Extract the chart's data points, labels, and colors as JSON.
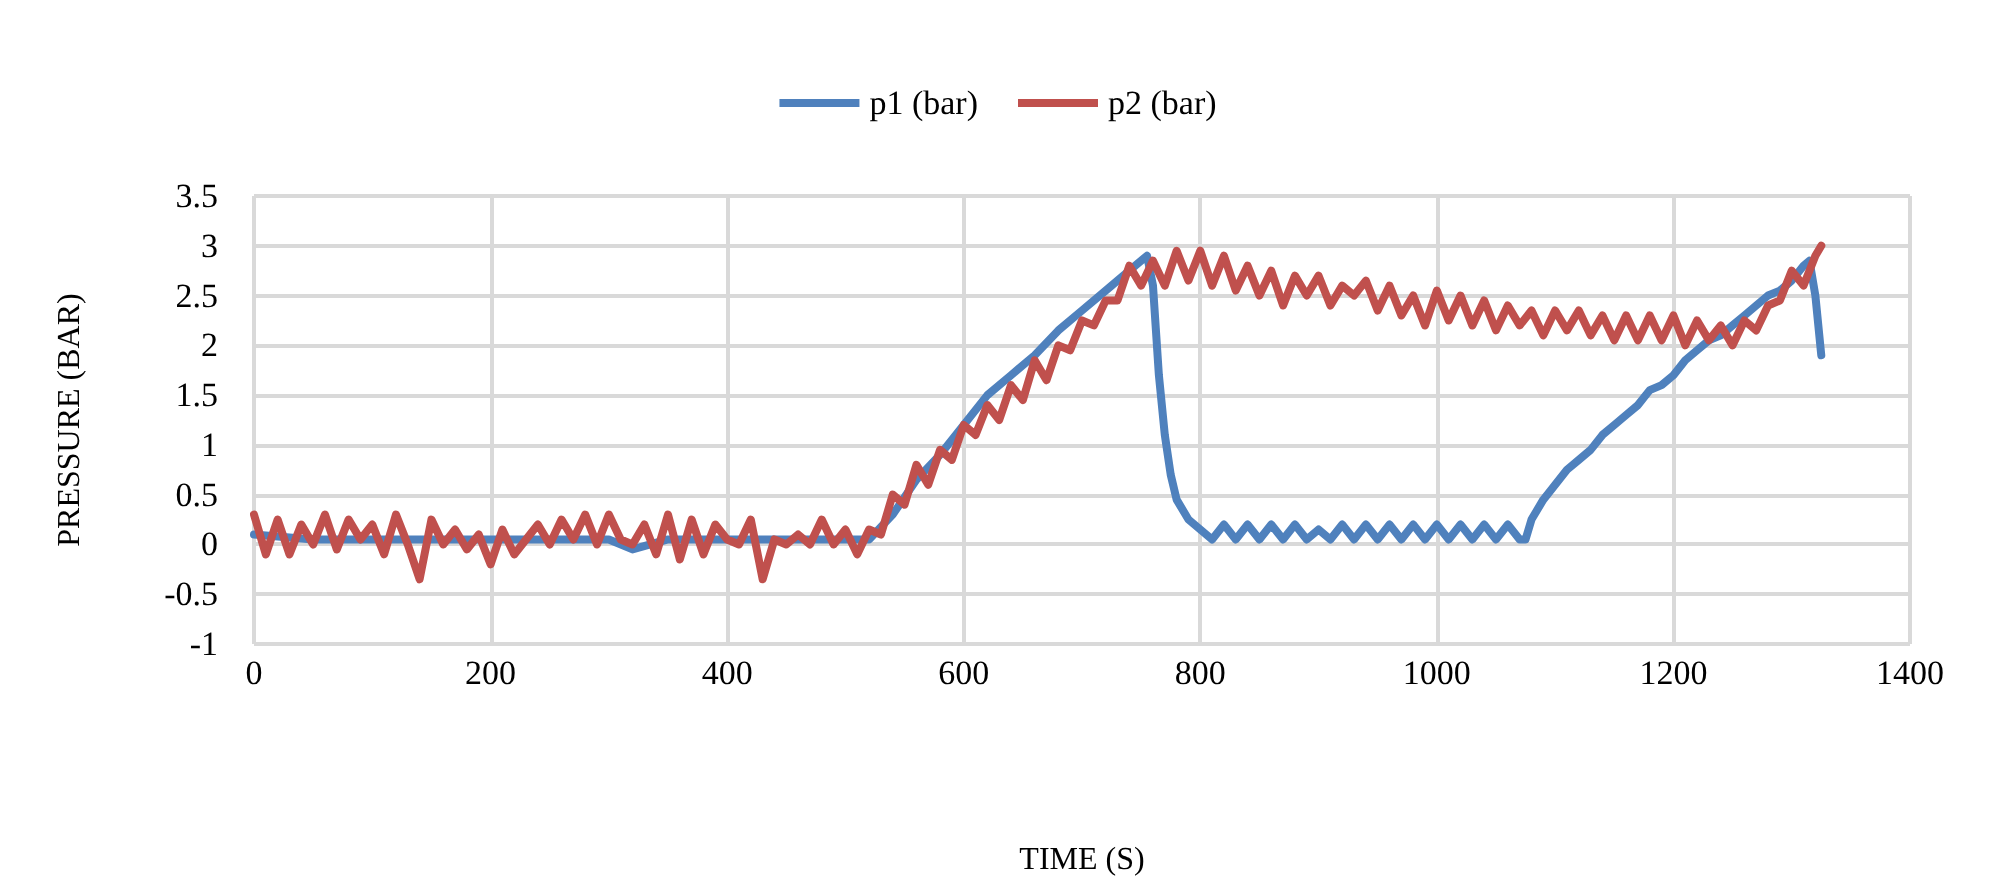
{
  "chart_data": {
    "type": "line",
    "xlabel": "TIME (S)",
    "ylabel": "PRESSURE (BAR)",
    "xlim": [
      0,
      1400
    ],
    "xticks": [
      0,
      200,
      400,
      600,
      800,
      1000,
      1200,
      1400
    ],
    "ylim": [
      -1,
      3.5
    ],
    "yticks": [
      -1,
      -0.5,
      0,
      0.5,
      1,
      1.5,
      2,
      2.5,
      3,
      3.5
    ],
    "grid": true,
    "legend": "top",
    "marker": "none",
    "line_style": "solid",
    "series": [
      {
        "name": "p1 (bar)",
        "color": "#4f81bd",
        "x": [
          0,
          50,
          100,
          150,
          200,
          250,
          300,
          320,
          350,
          400,
          450,
          500,
          520,
          540,
          560,
          580,
          600,
          620,
          640,
          660,
          680,
          700,
          720,
          740,
          755,
          760,
          765,
          770,
          775,
          780,
          790,
          800,
          810,
          820,
          830,
          840,
          850,
          860,
          870,
          880,
          890,
          900,
          910,
          920,
          930,
          940,
          950,
          960,
          970,
          980,
          990,
          1000,
          1010,
          1020,
          1030,
          1040,
          1050,
          1060,
          1070,
          1075,
          1080,
          1090,
          1100,
          1110,
          1120,
          1130,
          1140,
          1150,
          1160,
          1170,
          1180,
          1190,
          1200,
          1210,
          1220,
          1230,
          1240,
          1250,
          1260,
          1270,
          1280,
          1290,
          1300,
          1310,
          1315,
          1320,
          1325
        ],
        "values": [
          0.1,
          0.05,
          0.05,
          0.05,
          0.05,
          0.05,
          0.05,
          -0.05,
          0.05,
          0.05,
          0.05,
          0.05,
          0.05,
          0.3,
          0.65,
          0.9,
          1.2,
          1.5,
          1.7,
          1.9,
          2.15,
          2.35,
          2.55,
          2.75,
          2.9,
          2.6,
          1.7,
          1.1,
          0.7,
          0.45,
          0.25,
          0.15,
          0.05,
          0.2,
          0.05,
          0.2,
          0.05,
          0.2,
          0.05,
          0.2,
          0.05,
          0.15,
          0.05,
          0.2,
          0.05,
          0.2,
          0.05,
          0.2,
          0.05,
          0.2,
          0.05,
          0.2,
          0.05,
          0.2,
          0.05,
          0.2,
          0.05,
          0.2,
          0.05,
          0.05,
          0.25,
          0.45,
          0.6,
          0.75,
          0.85,
          0.95,
          1.1,
          1.2,
          1.3,
          1.4,
          1.55,
          1.6,
          1.7,
          1.85,
          1.95,
          2.05,
          2.1,
          2.2,
          2.3,
          2.4,
          2.5,
          2.55,
          2.65,
          2.8,
          2.85,
          2.5,
          1.9
        ]
      },
      {
        "name": "p2 (bar)",
        "color": "#c0504d",
        "x": [
          0,
          10,
          20,
          30,
          40,
          50,
          60,
          70,
          80,
          90,
          100,
          110,
          120,
          130,
          140,
          150,
          160,
          170,
          180,
          190,
          200,
          210,
          220,
          230,
          240,
          250,
          260,
          270,
          280,
          290,
          300,
          310,
          320,
          330,
          340,
          350,
          360,
          370,
          380,
          390,
          400,
          410,
          420,
          430,
          440,
          450,
          460,
          470,
          480,
          490,
          500,
          510,
          520,
          530,
          540,
          550,
          560,
          570,
          580,
          590,
          600,
          610,
          620,
          630,
          640,
          650,
          660,
          670,
          680,
          690,
          700,
          710,
          720,
          730,
          740,
          750,
          760,
          770,
          780,
          790,
          800,
          810,
          820,
          830,
          840,
          850,
          860,
          870,
          880,
          890,
          900,
          910,
          920,
          930,
          940,
          950,
          960,
          970,
          980,
          990,
          1000,
          1010,
          1020,
          1030,
          1040,
          1050,
          1060,
          1070,
          1080,
          1090,
          1100,
          1110,
          1120,
          1130,
          1140,
          1150,
          1160,
          1170,
          1180,
          1190,
          1200,
          1210,
          1220,
          1230,
          1240,
          1250,
          1260,
          1270,
          1280,
          1290,
          1300,
          1310,
          1320,
          1325
        ],
        "values": [
          0.3,
          -0.1,
          0.25,
          -0.1,
          0.2,
          0.0,
          0.3,
          -0.05,
          0.25,
          0.05,
          0.2,
          -0.1,
          0.3,
          0.0,
          -0.35,
          0.25,
          0.0,
          0.15,
          -0.05,
          0.1,
          -0.2,
          0.15,
          -0.1,
          0.05,
          0.2,
          0.0,
          0.25,
          0.05,
          0.3,
          0.0,
          0.3,
          0.05,
          0.0,
          0.2,
          -0.1,
          0.3,
          -0.15,
          0.25,
          -0.1,
          0.2,
          0.05,
          0.0,
          0.25,
          -0.35,
          0.05,
          0.0,
          0.1,
          0.0,
          0.25,
          0.0,
          0.15,
          -0.1,
          0.15,
          0.1,
          0.5,
          0.4,
          0.8,
          0.6,
          0.95,
          0.85,
          1.2,
          1.1,
          1.4,
          1.25,
          1.6,
          1.45,
          1.85,
          1.65,
          2.0,
          1.95,
          2.25,
          2.2,
          2.45,
          2.45,
          2.8,
          2.6,
          2.85,
          2.6,
          2.95,
          2.65,
          2.95,
          2.6,
          2.9,
          2.55,
          2.8,
          2.5,
          2.75,
          2.4,
          2.7,
          2.5,
          2.7,
          2.4,
          2.6,
          2.5,
          2.65,
          2.35,
          2.6,
          2.3,
          2.5,
          2.2,
          2.55,
          2.25,
          2.5,
          2.2,
          2.45,
          2.15,
          2.4,
          2.2,
          2.35,
          2.1,
          2.35,
          2.15,
          2.35,
          2.1,
          2.3,
          2.05,
          2.3,
          2.05,
          2.3,
          2.05,
          2.3,
          2.0,
          2.25,
          2.05,
          2.2,
          2.0,
          2.25,
          2.15,
          2.4,
          2.45,
          2.75,
          2.6,
          2.9,
          3.0
        ]
      }
    ]
  }
}
